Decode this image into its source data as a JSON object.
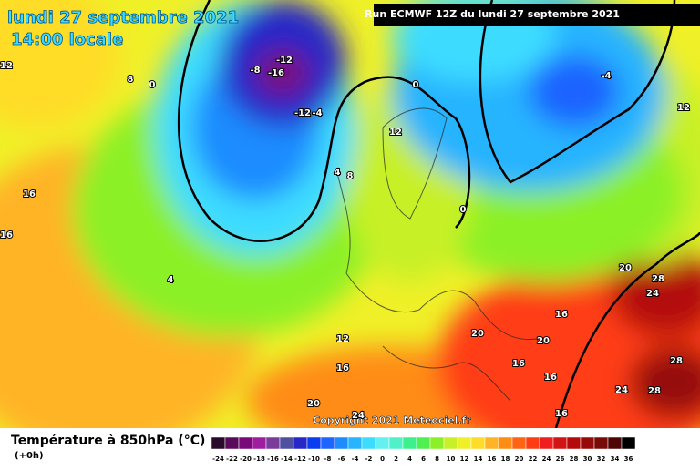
{
  "header": {
    "date": "lundi 27 septembre 2021",
    "time": "14:00 locale",
    "run": "Run ECMWF 12Z du lundi 27 septembre 2021"
  },
  "map": {
    "contour_labels": [
      12,
      8,
      0,
      -8,
      -12,
      -16,
      -12,
      -4,
      0,
      -4,
      12,
      12,
      16,
      16,
      4,
      8,
      0,
      4,
      20,
      28,
      24,
      16,
      12,
      20,
      20,
      16,
      16,
      16,
      28,
      24,
      28,
      20,
      24,
      16
    ],
    "copyright": "Copyright 2021 Meteociel.fr"
  },
  "legend": {
    "title": "Température à 850hPa (°C)",
    "step": "(+0h)",
    "ticks": [
      -24,
      -22,
      -20,
      -18,
      -16,
      -14,
      -12,
      -10,
      -8,
      -6,
      -4,
      -2,
      0,
      2,
      4,
      6,
      8,
      10,
      12,
      14,
      16,
      18,
      20,
      22,
      24,
      26,
      28,
      30,
      32,
      34,
      36
    ],
    "colors": [
      "#2a0a2a",
      "#5a0a5a",
      "#7a0a7a",
      "#a01da0",
      "#7a3c9a",
      "#5050a0",
      "#2828c8",
      "#0a3cf0",
      "#1e64ff",
      "#1e8cff",
      "#28b4ff",
      "#3cdcff",
      "#64f0f0",
      "#50f0c8",
      "#3cf08c",
      "#50f050",
      "#8cf028",
      "#c8f028",
      "#f0f028",
      "#ffdc28",
      "#ffb428",
      "#ff8c14",
      "#ff6414",
      "#ff3c14",
      "#f01e1e",
      "#d21414",
      "#b40a0a",
      "#960a0a",
      "#780a0a",
      "#500505",
      "#000000"
    ]
  }
}
